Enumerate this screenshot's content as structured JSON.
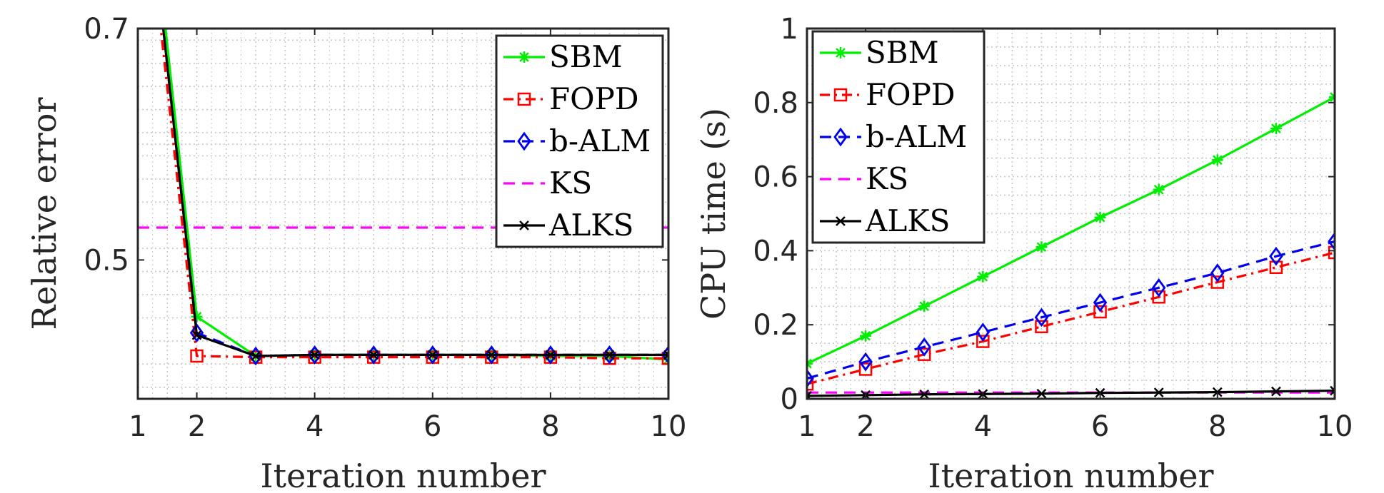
{
  "chart_data": [
    {
      "type": "line",
      "xlabel": "Iteration number",
      "ylabel": "Relative error",
      "xlim": [
        1,
        10
      ],
      "ylim": [
        0.38,
        0.7
      ],
      "xticks": [
        1,
        2,
        4,
        6,
        8,
        10
      ],
      "xtick_labels": [
        "1",
        "2",
        "4",
        "6",
        "8",
        "10"
      ],
      "yticks": [
        0.5,
        0.7
      ],
      "ytick_labels": [
        "0.5",
        "0.7"
      ],
      "grid": true,
      "minor_grid": true,
      "legend_position": "top-right",
      "series": [
        {
          "name": "SBM",
          "color": "#00ee00",
          "dash": "solid",
          "marker": "asterisk",
          "x": [
            1,
            2,
            3,
            4,
            5,
            6,
            7,
            8,
            9,
            10
          ],
          "y": [
            0.92,
            0.451,
            0.417,
            0.418,
            0.418,
            0.418,
            0.418,
            0.417,
            0.417,
            0.414
          ]
        },
        {
          "name": "FOPD",
          "color": "#ff0000",
          "dash": "dashdot",
          "marker": "square",
          "x": [
            1,
            2,
            3,
            4,
            5,
            6,
            7,
            8,
            9,
            10
          ],
          "y": [
            0.88,
            0.417,
            0.416,
            0.416,
            0.416,
            0.416,
            0.416,
            0.416,
            0.415,
            0.415
          ]
        },
        {
          "name": "b-ALM",
          "color": "#0000ee",
          "dash": "dashed",
          "marker": "diamond",
          "x": [
            1,
            2,
            3,
            4,
            5,
            6,
            7,
            8,
            9,
            10
          ],
          "y": [
            0.9,
            0.437,
            0.417,
            0.418,
            0.418,
            0.418,
            0.418,
            0.418,
            0.418,
            0.418
          ]
        },
        {
          "name": "KS",
          "color": "#ff00ff",
          "dash": "dashed",
          "marker": "none",
          "x": [
            1,
            10
          ],
          "y": [
            0.528,
            0.528
          ]
        },
        {
          "name": "ALKS",
          "color": "#000000",
          "dash": "solid",
          "marker": "x",
          "x": [
            1,
            2,
            3,
            4,
            5,
            6,
            7,
            8,
            9,
            10
          ],
          "y": [
            0.9,
            0.435,
            0.417,
            0.418,
            0.418,
            0.418,
            0.418,
            0.418,
            0.418,
            0.418
          ]
        }
      ]
    },
    {
      "type": "line",
      "xlabel": "Iteration number",
      "ylabel": "CPU time (s)",
      "xlim": [
        1,
        10
      ],
      "ylim": [
        0,
        1
      ],
      "xticks": [
        1,
        2,
        4,
        6,
        8,
        10
      ],
      "xtick_labels": [
        "1",
        "2",
        "4",
        "6",
        "8",
        "10"
      ],
      "yticks": [
        0,
        0.2,
        0.4,
        0.6,
        0.8,
        1
      ],
      "ytick_labels": [
        "0",
        "0.2",
        "0.4",
        "0.6",
        "0.8",
        "1"
      ],
      "grid": true,
      "minor_grid": true,
      "legend_position": "top-left",
      "series": [
        {
          "name": "SBM",
          "color": "#00ee00",
          "dash": "solid",
          "marker": "asterisk",
          "x": [
            1,
            2,
            3,
            4,
            5,
            6,
            7,
            8,
            9,
            10
          ],
          "y": [
            0.095,
            0.17,
            0.25,
            0.33,
            0.41,
            0.49,
            0.565,
            0.645,
            0.73,
            0.815
          ]
        },
        {
          "name": "FOPD",
          "color": "#ff0000",
          "dash": "dashdot",
          "marker": "square",
          "x": [
            1,
            2,
            3,
            4,
            5,
            6,
            7,
            8,
            9,
            10
          ],
          "y": [
            0.04,
            0.08,
            0.12,
            0.155,
            0.195,
            0.235,
            0.275,
            0.315,
            0.355,
            0.395
          ]
        },
        {
          "name": "b-ALM",
          "color": "#0000ee",
          "dash": "dashed",
          "marker": "diamond",
          "x": [
            1,
            2,
            3,
            4,
            5,
            6,
            7,
            8,
            9,
            10
          ],
          "y": [
            0.055,
            0.1,
            0.14,
            0.18,
            0.22,
            0.26,
            0.3,
            0.34,
            0.385,
            0.425
          ]
        },
        {
          "name": "KS",
          "color": "#ff00ff",
          "dash": "dashed",
          "marker": "none",
          "x": [
            1,
            10
          ],
          "y": [
            0.017,
            0.017
          ]
        },
        {
          "name": "ALKS",
          "color": "#000000",
          "dash": "solid",
          "marker": "x",
          "x": [
            1,
            2,
            3,
            4,
            5,
            6,
            7,
            8,
            9,
            10
          ],
          "y": [
            0.008,
            0.01,
            0.012,
            0.013,
            0.014,
            0.016,
            0.017,
            0.018,
            0.02,
            0.022
          ]
        }
      ]
    }
  ]
}
